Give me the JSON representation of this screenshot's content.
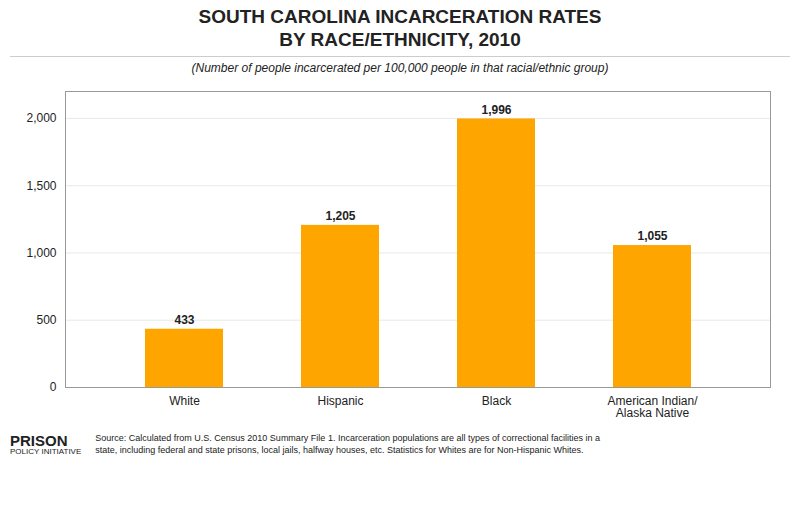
{
  "chart_data": {
    "type": "bar",
    "title": "SOUTH CAROLINA INCARCERATION RATES\nBY RACE/ETHNICITY, 2010",
    "subtitle": "(Number of people incarcerated per 100,000 people in that racial/ethnic group)",
    "categories": [
      "White",
      "Hispanic",
      "Black",
      "American Indian/\nAlaska Native"
    ],
    "values": [
      433,
      1205,
      1996,
      1055
    ],
    "value_labels": [
      "433",
      "1,205",
      "1,996",
      "1,055"
    ],
    "data_labels": true,
    "color": "#FFA500",
    "ylim": [
      0,
      2200
    ],
    "yticks": [
      0,
      500,
      {
        "value": 1000,
        "label": "1,000"
      },
      {
        "value": 1500,
        "label": "1,500"
      },
      {
        "value": 2000,
        "label": "2,000"
      }
    ],
    "grid": true,
    "caption": "Source: Calculated from U.S. Census 2010 Summary File 1. Incarceration populations are all types of correctional facilities in a\nstate, including federal and state prisons, local jails, halfway houses, etc. Statistics for Whites are for Non-Hispanic Whites.",
    "annotations": [
      "PRISON",
      "POLICY INITIATIVE"
    ]
  }
}
